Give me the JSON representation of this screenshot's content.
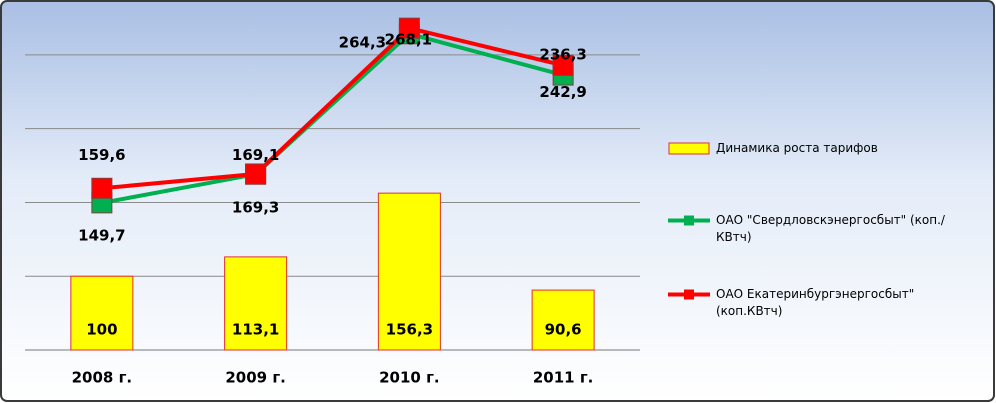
{
  "chart_data": {
    "type": "combo",
    "categories": [
      "2008 г.",
      "2009 г.",
      "2010 г.",
      "2011 г."
    ],
    "ylim": [
      50,
      275
    ],
    "yticks": [
      50,
      100,
      150,
      200,
      250
    ],
    "grid": true,
    "series": [
      {
        "name": "Динамика роста тарифов",
        "type": "bar",
        "color": "#ffff00",
        "values": [
          100,
          113.1,
          156.3,
          90.6
        ],
        "value_labels": [
          "100",
          "113,1",
          "156,3",
          "90,6"
        ]
      },
      {
        "name": "ОАО \"Свердловскэнергосбыт\" (коп./КВтч)",
        "type": "line",
        "color": "#00b050",
        "values": [
          149.7,
          169.1,
          264.3,
          236.3
        ],
        "value_labels": [
          "149,7",
          "169,1",
          "264,3",
          "236,3"
        ]
      },
      {
        "name": "ОАО Екатеринбургэнергосбыт\"(коп.КВтч)",
        "type": "line",
        "color": "#ff0000",
        "values": [
          159.6,
          169.3,
          268.1,
          242.9
        ],
        "value_labels": [
          "159,6",
          "169,3",
          "268,1",
          "242,9"
        ]
      }
    ]
  }
}
